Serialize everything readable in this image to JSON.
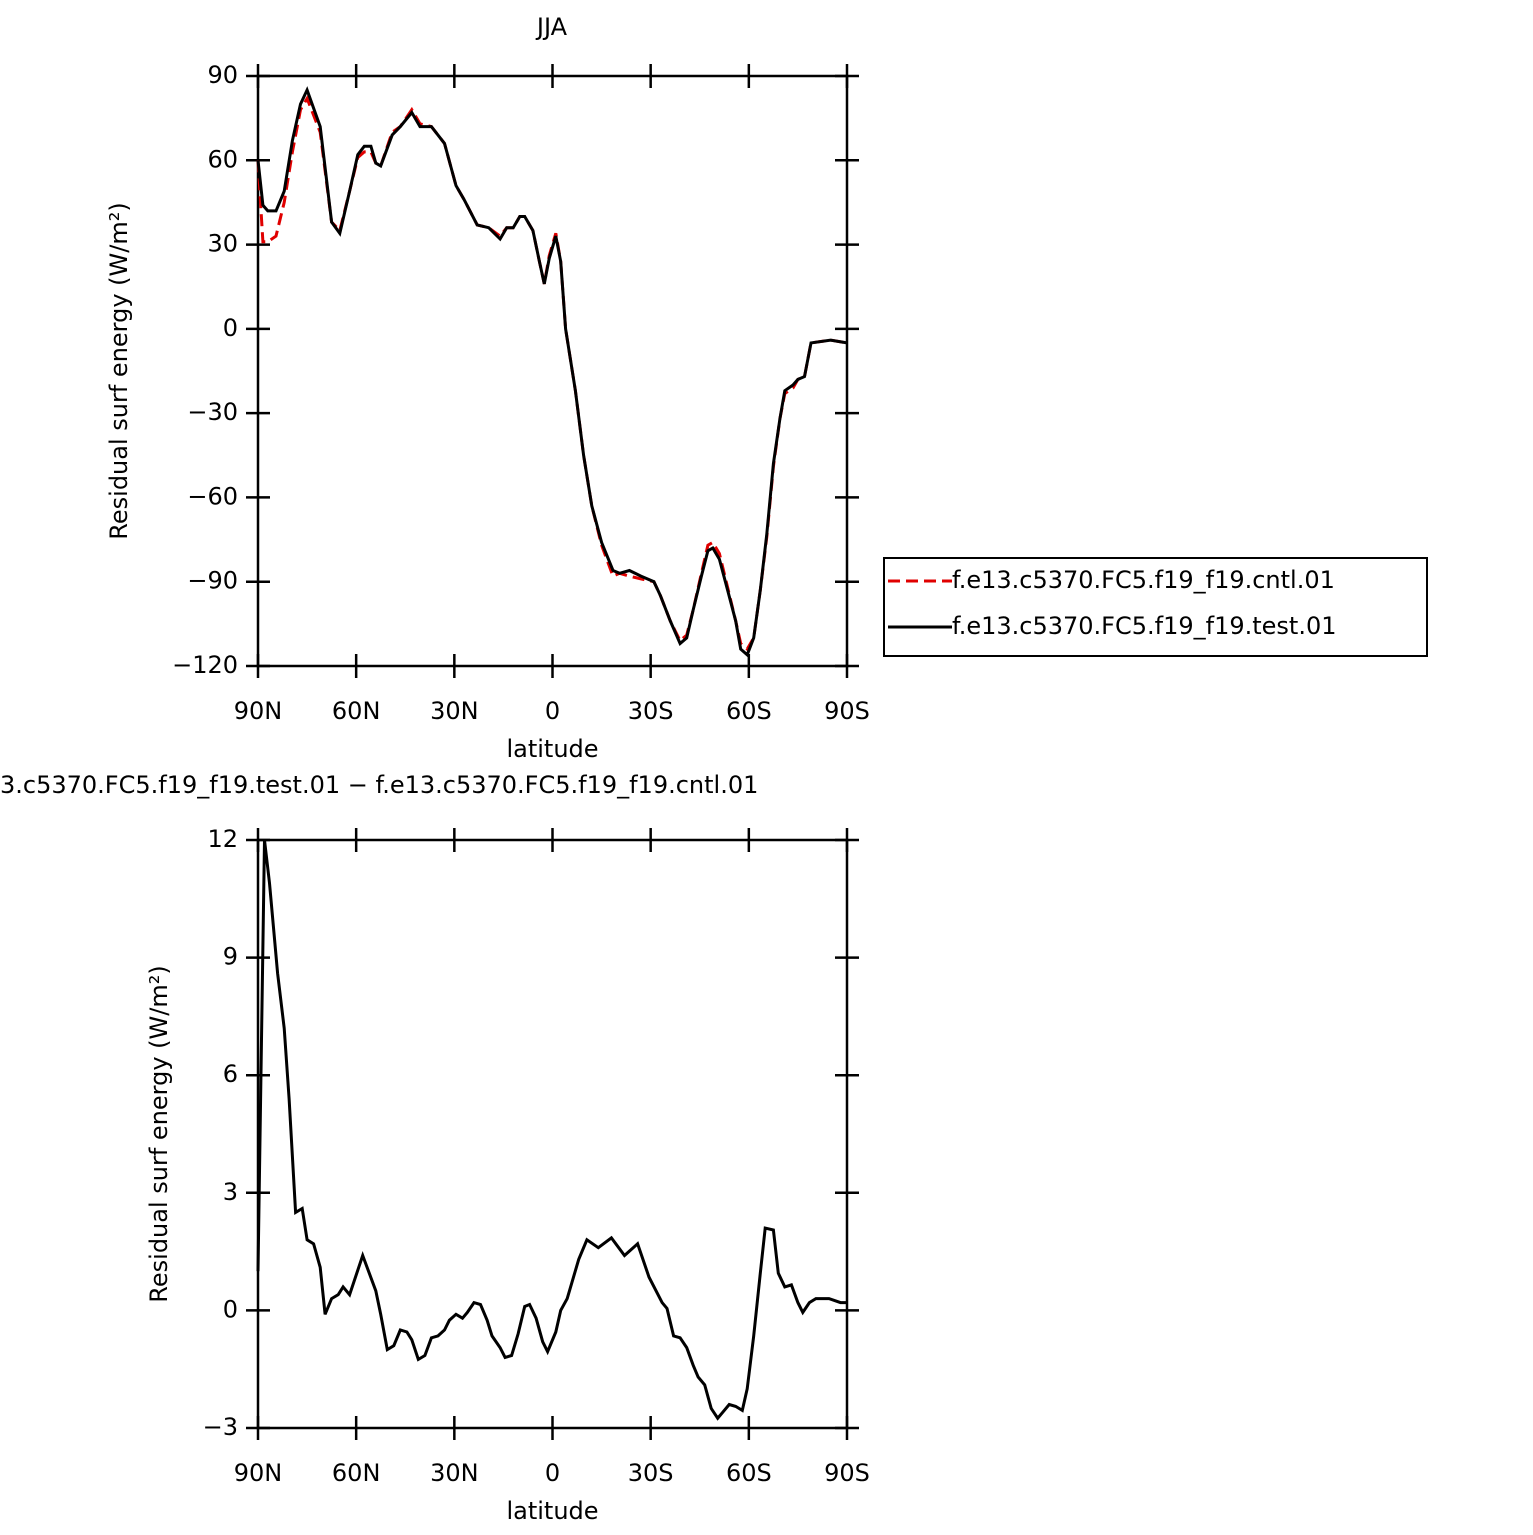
{
  "chart_data": [
    {
      "type": "line",
      "title": "JJA",
      "x_label": "latitude",
      "y_label": "Residual surf energy (W/m²)",
      "xlim": [
        90,
        -90
      ],
      "xticks": [
        {
          "value": 90,
          "label": "90N"
        },
        {
          "value": 60,
          "label": "60N"
        },
        {
          "value": 30,
          "label": "30N"
        },
        0,
        {
          "value": -30,
          "label": "30S"
        },
        {
          "value": -60,
          "label": "60S"
        },
        {
          "value": -90,
          "label": "90S"
        }
      ],
      "ylim": [
        -120,
        90
      ],
      "yticks": [
        {
          "value": -120,
          "label": "−120"
        },
        {
          "value": -90,
          "label": "−90"
        },
        {
          "value": -60,
          "label": "−60"
        },
        {
          "value": -30,
          "label": "−30"
        },
        0,
        30,
        60,
        90
      ],
      "legend": "right",
      "x": [
        90,
        88.5,
        87,
        84.5,
        82,
        79.5,
        77,
        75,
        71,
        67.5,
        65,
        62,
        59.5,
        57.5,
        55.5,
        54,
        52.5,
        49,
        46.5,
        43,
        40.5,
        37,
        33,
        29.5,
        27,
        23,
        19.5,
        16,
        14,
        12,
        10,
        8.5,
        6,
        4,
        2.5,
        1,
        -1,
        -2.5,
        -4,
        -7,
        -9.5,
        -12,
        -15,
        -18.5,
        -20.5,
        -23.5,
        -27,
        -31,
        -33,
        -36,
        -39,
        -41,
        -43,
        -45.5,
        -47.5,
        -49,
        -51,
        -53.5,
        -56,
        -57.5,
        -59.5,
        -61.5,
        -63.5,
        -65.5,
        -67.5,
        -69.5,
        -71,
        -73.5,
        -75,
        -77,
        -79,
        -85,
        -90
      ],
      "series": [
        {
          "name": "f.e13.c5370.FC5.f19_f19.cntl.01",
          "color": "#e00000",
          "style": "dashed",
          "values": [
            60,
            31,
            31,
            33,
            45,
            63,
            78,
            82,
            70,
            38,
            35,
            49,
            61,
            63,
            63,
            59,
            58,
            70,
            72,
            78,
            73,
            72,
            66,
            51,
            46,
            37,
            36,
            33,
            36,
            36,
            40,
            40,
            35,
            24,
            16,
            26,
            34,
            24,
            0,
            -22,
            -45,
            -63,
            -77,
            -88,
            -87,
            -88,
            -89,
            -90,
            -95,
            -104,
            -111,
            -109,
            -100,
            -87,
            -77,
            -76,
            -80,
            -92,
            -104,
            -112,
            -114,
            -110,
            -93,
            -74,
            -49,
            -32,
            -23,
            -21,
            -18,
            -17,
            -5,
            -4,
            -5
          ]
        },
        {
          "name": "f.e13.c5370.FC5.f19_f19.test.01",
          "color": "#000000",
          "style": "solid",
          "values": [
            60,
            44,
            42,
            42,
            49,
            67,
            80,
            85,
            72,
            38,
            34,
            49,
            62,
            65,
            65,
            59,
            58,
            69,
            72,
            77,
            72,
            72,
            66,
            51,
            46,
            37,
            36,
            32,
            36,
            36,
            40,
            40,
            35,
            24,
            16,
            25,
            33,
            24,
            0,
            -22,
            -45,
            -63,
            -76,
            -86,
            -87,
            -86,
            -88,
            -90,
            -95,
            -104,
            -112,
            -110,
            -100,
            -88,
            -79,
            -78,
            -82,
            -93,
            -104,
            -114,
            -116,
            -110,
            -93,
            -73,
            -48,
            -32,
            -22,
            -20,
            -18,
            -17,
            -5,
            -4,
            -5
          ]
        }
      ]
    },
    {
      "type": "line",
      "title": "3.c5370.FC5.f19_f19.test.01 − f.e13.c5370.FC5.f19_f19.cntl.01",
      "x_label": "latitude",
      "y_label": "Residual surf energy (W/m²)",
      "xlim": [
        90,
        -90
      ],
      "xticks": [
        {
          "value": 90,
          "label": "90N"
        },
        {
          "value": 60,
          "label": "60N"
        },
        {
          "value": 30,
          "label": "30N"
        },
        0,
        {
          "value": -30,
          "label": "30S"
        },
        {
          "value": -60,
          "label": "60S"
        },
        {
          "value": -90,
          "label": "90S"
        }
      ],
      "ylim": [
        -3,
        12
      ],
      "yticks": [
        {
          "value": -3,
          "label": "−3"
        },
        0,
        3,
        6,
        9,
        12
      ],
      "x": [
        90,
        88,
        86.5,
        84,
        82,
        80.5,
        78.5,
        76.5,
        75,
        73,
        71,
        69.5,
        67.5,
        65.5,
        64,
        62,
        58,
        54,
        52.5,
        50.5,
        48.5,
        46.5,
        44.5,
        43,
        41,
        39,
        37,
        35,
        33,
        31.5,
        29.5,
        27.5,
        26,
        24,
        22,
        20,
        18.5,
        16,
        14.5,
        12.5,
        10.5,
        8.5,
        7,
        5,
        3,
        1.5,
        -1,
        -2.5,
        -4.5,
        -8,
        -10.5,
        -14,
        -18,
        -22,
        -26,
        -29.5,
        -33.5,
        -35,
        -37,
        -39,
        -41,
        -43,
        -44.5,
        -46.5,
        -48.5,
        -50.5,
        -52,
        -54,
        -56,
        -58,
        -59.5,
        -61.5,
        -63.5,
        -65,
        -67.5,
        -69,
        -71,
        -73,
        -75,
        -76.5,
        -78.5,
        -80.5,
        -84.5,
        -88,
        -90
      ],
      "series": [
        {
          "color": "#000000",
          "style": "solid",
          "values": [
            1.0,
            12,
            10.9,
            8.6,
            7.2,
            5.4,
            2.5,
            2.6,
            1.8,
            1.7,
            1.1,
            -0.1,
            0.3,
            0.4,
            0.6,
            0.4,
            1.4,
            0.5,
            -0.1,
            -1.0,
            -0.9,
            -0.5,
            -0.55,
            -0.75,
            -1.25,
            -1.15,
            -0.7,
            -0.65,
            -0.5,
            -0.25,
            -0.1,
            -0.2,
            -0.05,
            0.2,
            0.15,
            -0.25,
            -0.65,
            -0.95,
            -1.2,
            -1.15,
            -0.6,
            0.1,
            0.15,
            -0.2,
            -0.8,
            -1.05,
            -0.55,
            0.0,
            0.3,
            1.3,
            1.8,
            1.6,
            1.85,
            1.4,
            1.7,
            0.85,
            0.2,
            0.05,
            -0.65,
            -0.7,
            -0.95,
            -1.4,
            -1.7,
            -1.9,
            -2.5,
            -2.75,
            -2.6,
            -2.4,
            -2.45,
            -2.55,
            -2.0,
            -0.65,
            0.95,
            2.1,
            2.05,
            0.95,
            0.6,
            0.65,
            0.2,
            -0.05,
            0.2,
            0.3,
            0.3,
            0.2,
            0.2
          ]
        }
      ]
    }
  ]
}
